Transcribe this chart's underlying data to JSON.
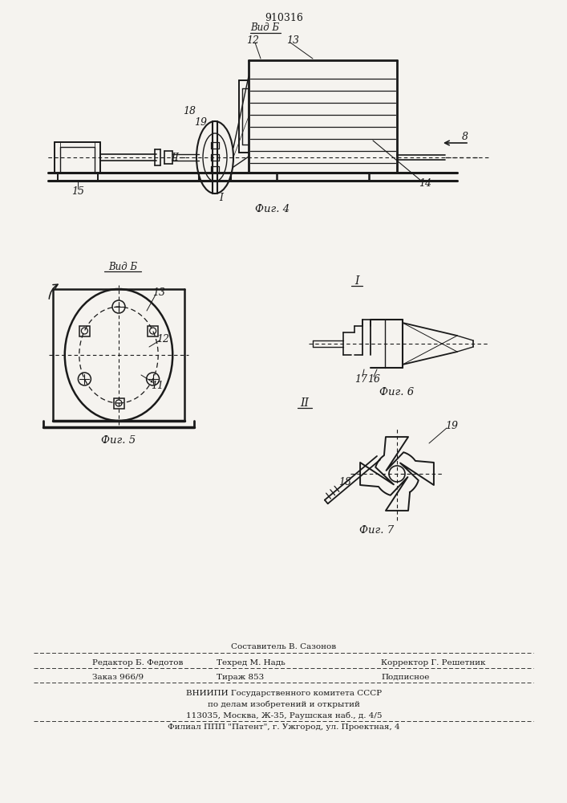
{
  "patent_number": "910316",
  "bg_color": "#f5f3ef",
  "line_color": "#1a1a1a",
  "fig4_caption": "Фиг. 4",
  "fig5_caption": "Фиг. 5",
  "fig6_caption": "Фиг. 6",
  "fig7_caption": "Фиг. 7",
  "vid_b_label": "Вид Б",
  "vid_b2_label": "Вид Б",
  "footer_line0": "Составитель В. Сазонов",
  "footer_line1l": "Редактор Б. Федотов",
  "footer_line1m": "Техред М. Надь",
  "footer_line1r": "Корректор Г. Решетник",
  "footer_line2l": "Заказ 966/9",
  "footer_line2m": "Тираж 853",
  "footer_line2r": "Подписное",
  "footer_line3": "ВНИИПИ Государственного комитета СССР",
  "footer_line4": "по делам изобретений и открытий",
  "footer_line5": "113035, Москва, Ж-35, Раушская наб., д. 4/5",
  "footer_line6": "Филиал ППП \"Патент\", г. Ужгород, ул. Проектная, 4"
}
